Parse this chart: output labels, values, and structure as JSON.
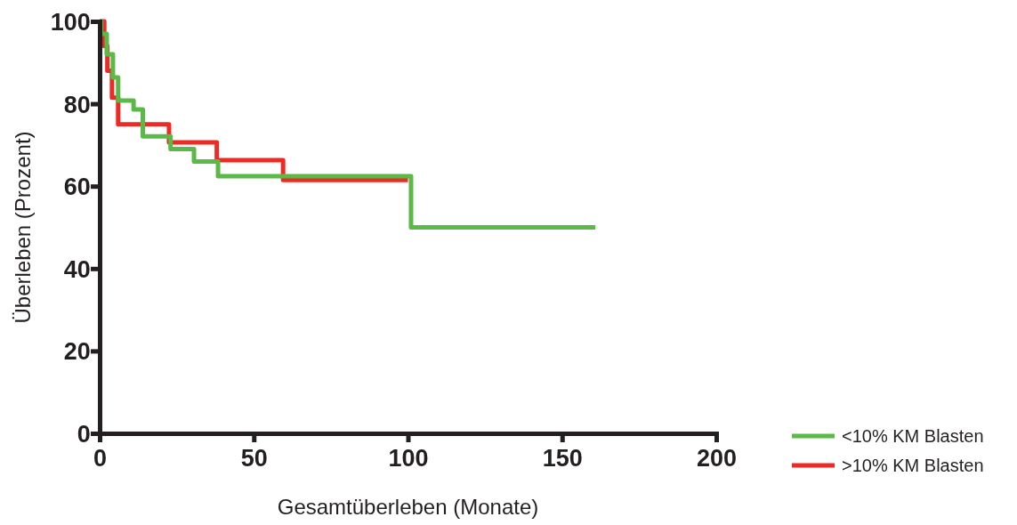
{
  "chart_data": {
    "type": "step",
    "xlabel": "Gesamtüberleben (Monate)",
    "ylabel": "Überleben (Prozent)",
    "xlim": [
      0,
      200
    ],
    "xticks": [
      0,
      50,
      100,
      150,
      200
    ],
    "ylim": [
      0,
      100
    ],
    "yticks": [
      0,
      20,
      40,
      60,
      80,
      100
    ],
    "grid": false,
    "legend": "bottom right",
    "series": [
      {
        "name": "<10% KM Blasten",
        "color": "#5ab947",
        "x": [
          0,
          0.5,
          2.3,
          4.3,
          6,
          11,
          14,
          23,
          30.6,
          38.4,
          101,
          160.8
        ],
        "values": [
          100,
          97,
          92,
          86.4,
          80.8,
          78.6,
          72.1,
          69,
          66,
          62.4,
          50,
          50
        ]
      },
      {
        "name": ">10% KM Blasten",
        "color": "#ee2a24",
        "x": [
          0,
          1.5,
          2.5,
          4,
          6,
          22.5,
          38,
          59.5,
          100
        ],
        "values": [
          100,
          94,
          88,
          81.5,
          75,
          70.6,
          66.3,
          61.5,
          61.5
        ]
      }
    ]
  }
}
